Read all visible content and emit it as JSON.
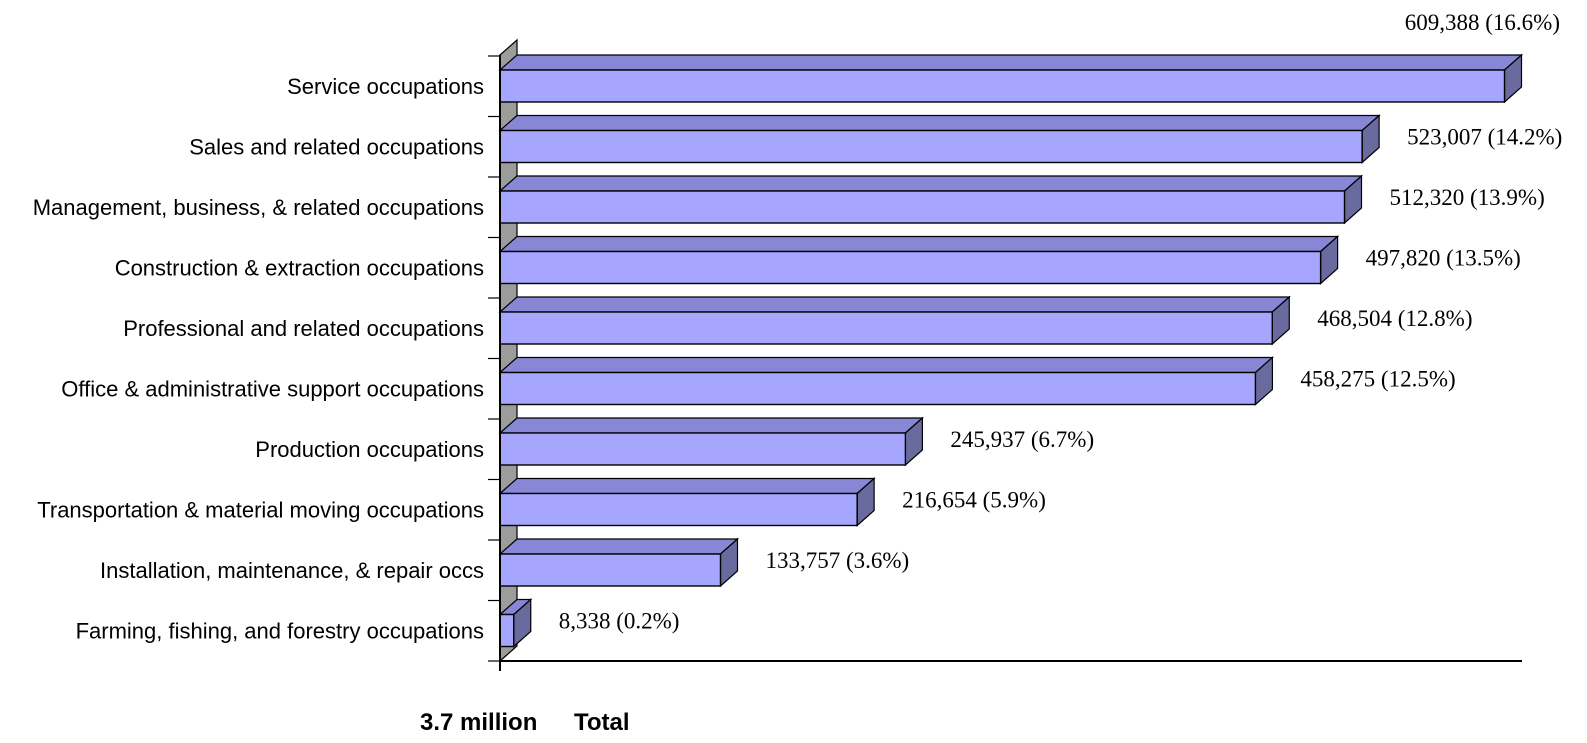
{
  "chart_data": {
    "type": "bar",
    "orientation": "horizontal",
    "style": "3d",
    "categories": [
      "Service occupations",
      "Sales and related occupations",
      "Management, business, & related occupations",
      "Construction & extraction occupations",
      "Professional and related occupations",
      "Office & administrative support occupations",
      "Production occupations",
      "Transportation & material moving occupations",
      "Installation, maintenance, & repair occs",
      "Farming, fishing, and forestry occupations"
    ],
    "values": [
      609388,
      523007,
      512320,
      497820,
      468504,
      458275,
      245937,
      216654,
      133757,
      8338
    ],
    "data_labels": [
      "609,388 (16.6%)",
      "523,007 (14.2%)",
      "512,320 (13.9%)",
      "497,820 (13.5%)",
      "468,504 (12.8%)",
      "458,275 (12.5%)",
      "245,937 (6.7%)",
      "216,654 (5.9%)",
      "133,757 (3.6%)",
      "8,338 (0.2%)"
    ],
    "xlim": [
      0,
      620000
    ],
    "grid": false,
    "colors": {
      "bar_front": "#A6A6FF",
      "bar_top": "#8787D6",
      "bar_side": "#696A9E",
      "axis_wall": "#9C9C9C",
      "outline": "#000000"
    },
    "footer": {
      "total_value": "3.7 million",
      "total_label": "Total"
    }
  }
}
